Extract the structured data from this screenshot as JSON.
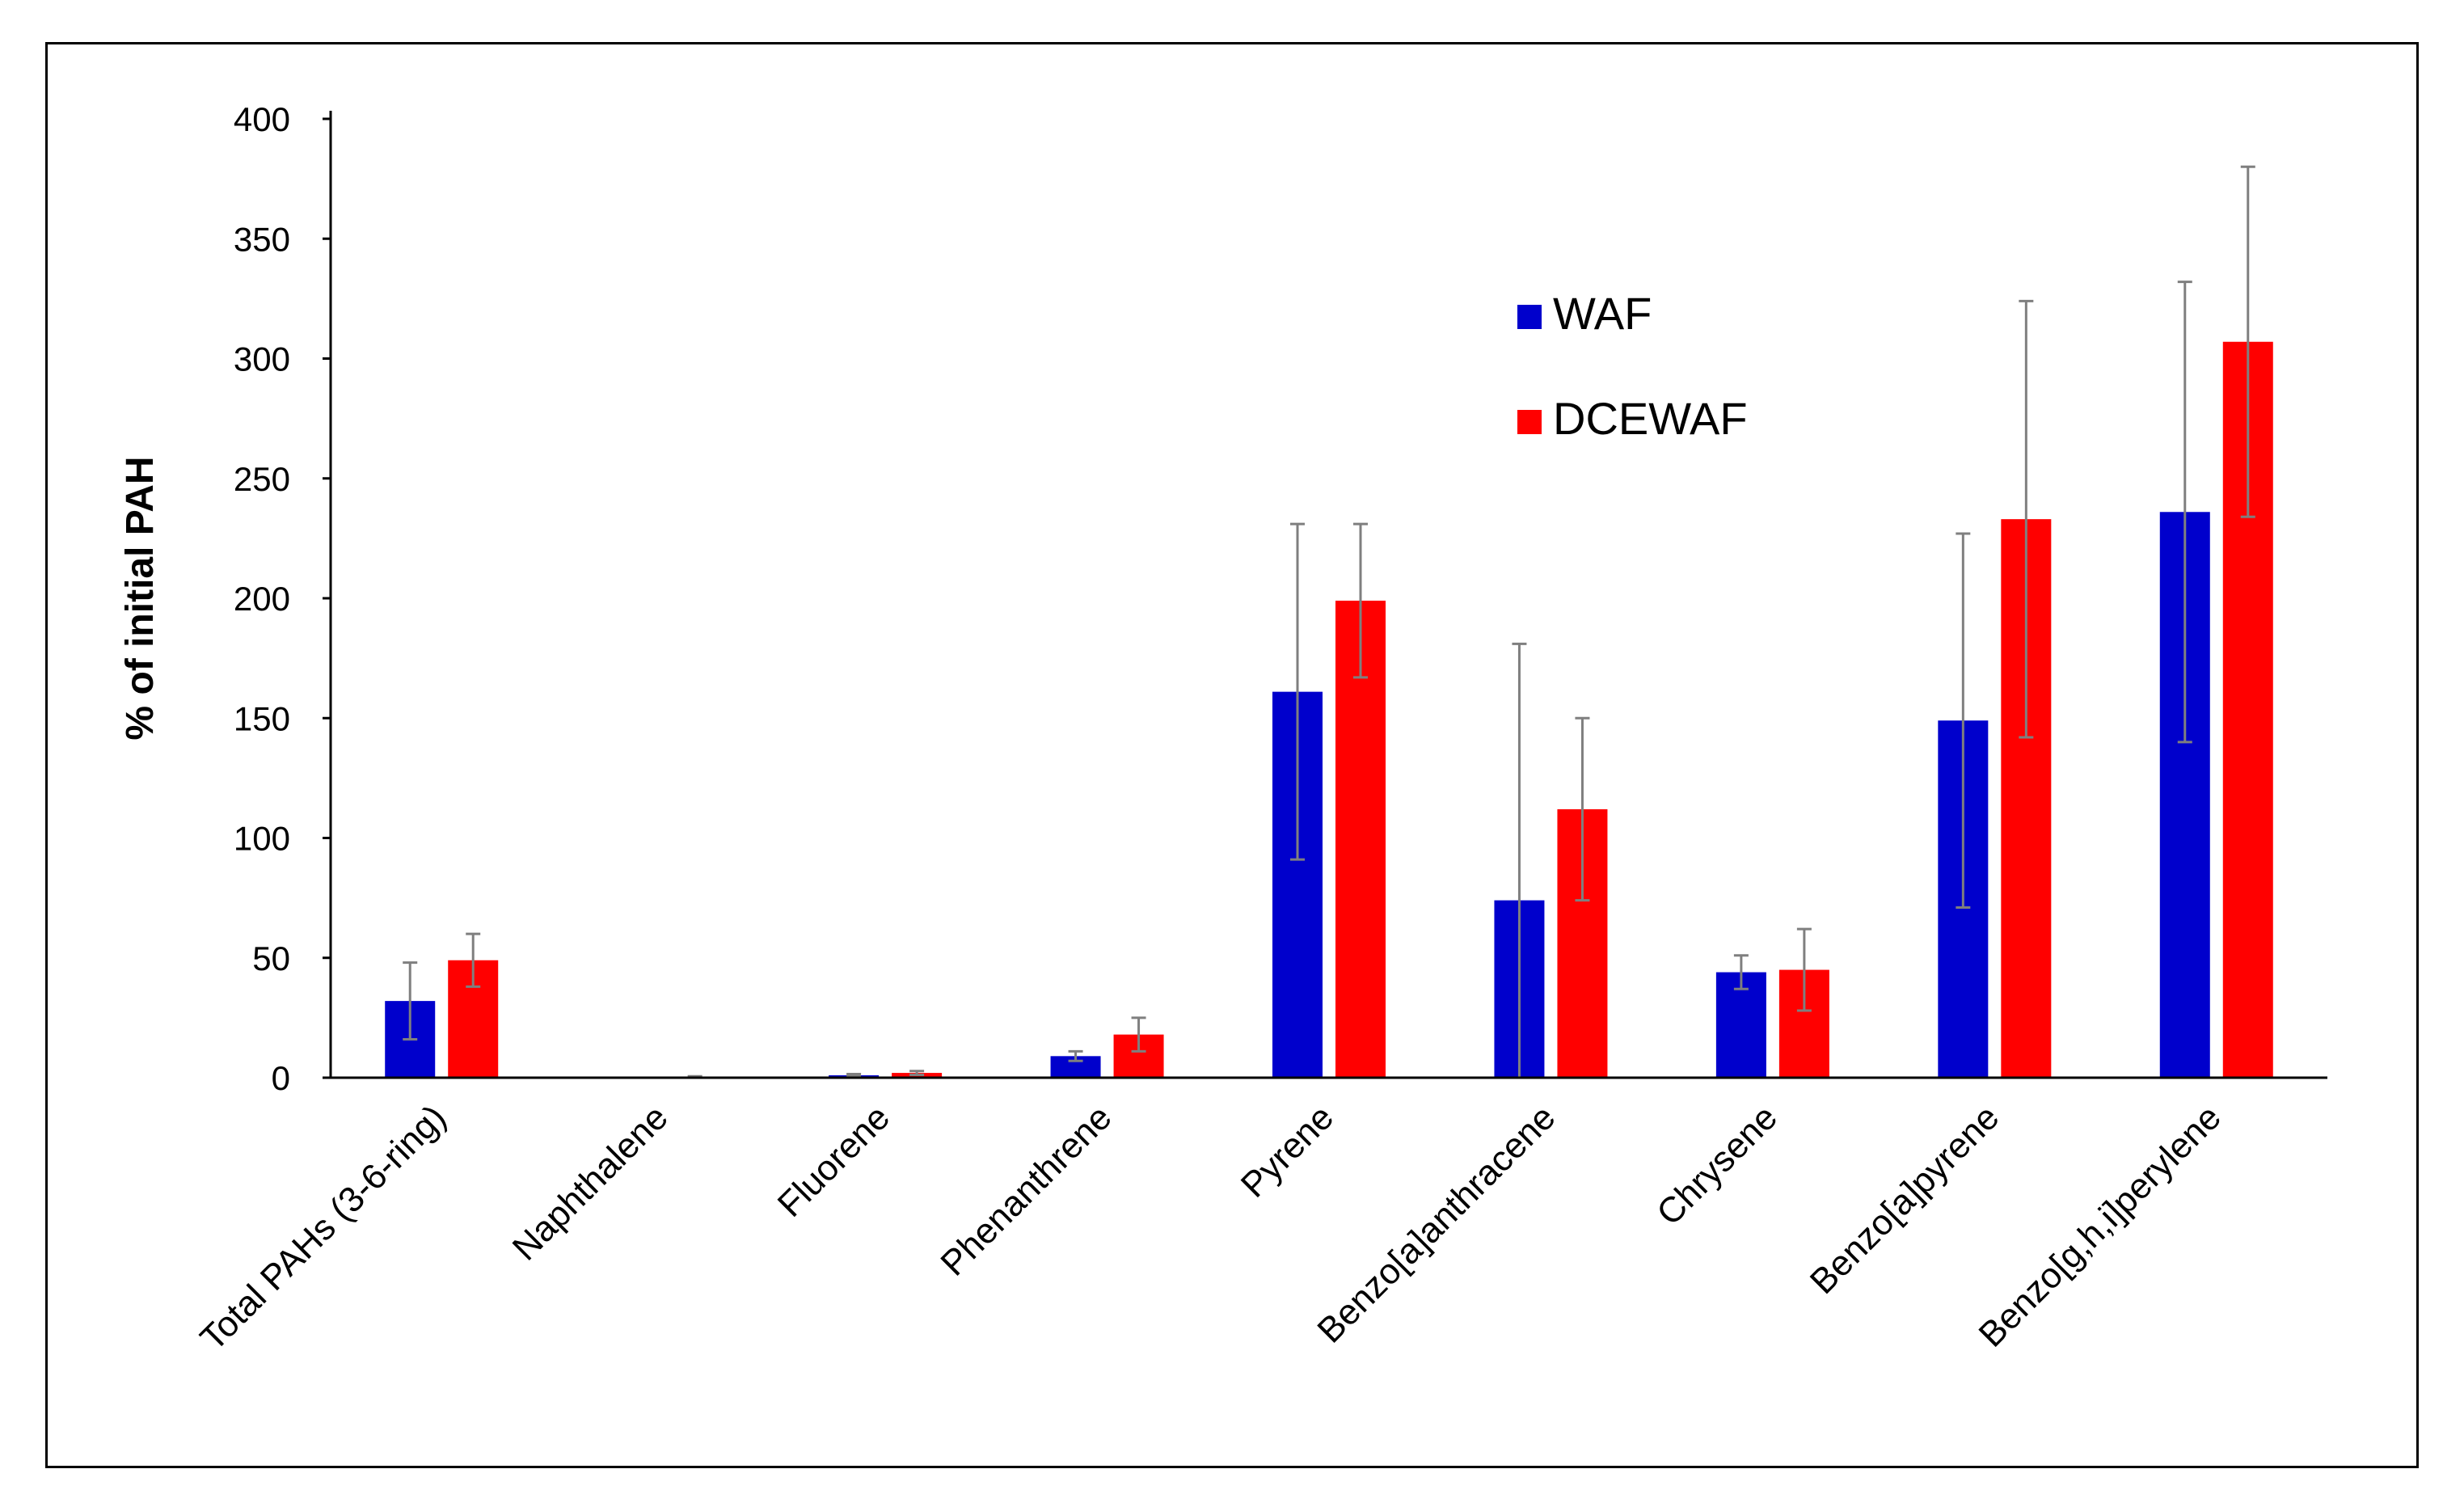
{
  "chart_data": {
    "type": "bar",
    "title": "",
    "xlabel": "",
    "ylabel": "% of initial  PAH",
    "ylim": [
      0,
      400
    ],
    "yticks": [
      0,
      50,
      100,
      150,
      200,
      250,
      300,
      350,
      400
    ],
    "grid": false,
    "legend_position": "upper-right-inside",
    "categories": [
      "Total PAHs (3-6-ring)",
      "Naphthalene",
      "Fluorene",
      "Phenanthrene",
      "Pyrene",
      "Benzo[a]anthracene",
      "Chrysene",
      "Benzo[a]pyrene",
      "Benzo[g,h,i]perylene"
    ],
    "series": [
      {
        "name": "WAF",
        "color": "#0000cc",
        "values": [
          32,
          0,
          1,
          9,
          161,
          74,
          44,
          149,
          236
        ],
        "errors": [
          16,
          0,
          0.5,
          2,
          70,
          107,
          7,
          78,
          96
        ]
      },
      {
        "name": "DCEWAF",
        "color": "#ff0000",
        "values": [
          49,
          0.3,
          2,
          18,
          199,
          112,
          45,
          233,
          307
        ],
        "errors": [
          11,
          0.3,
          0.8,
          7,
          32,
          38,
          17,
          91,
          73
        ]
      }
    ],
    "error_bar_color": "#7f7f7f",
    "axis_color": "#000000"
  }
}
